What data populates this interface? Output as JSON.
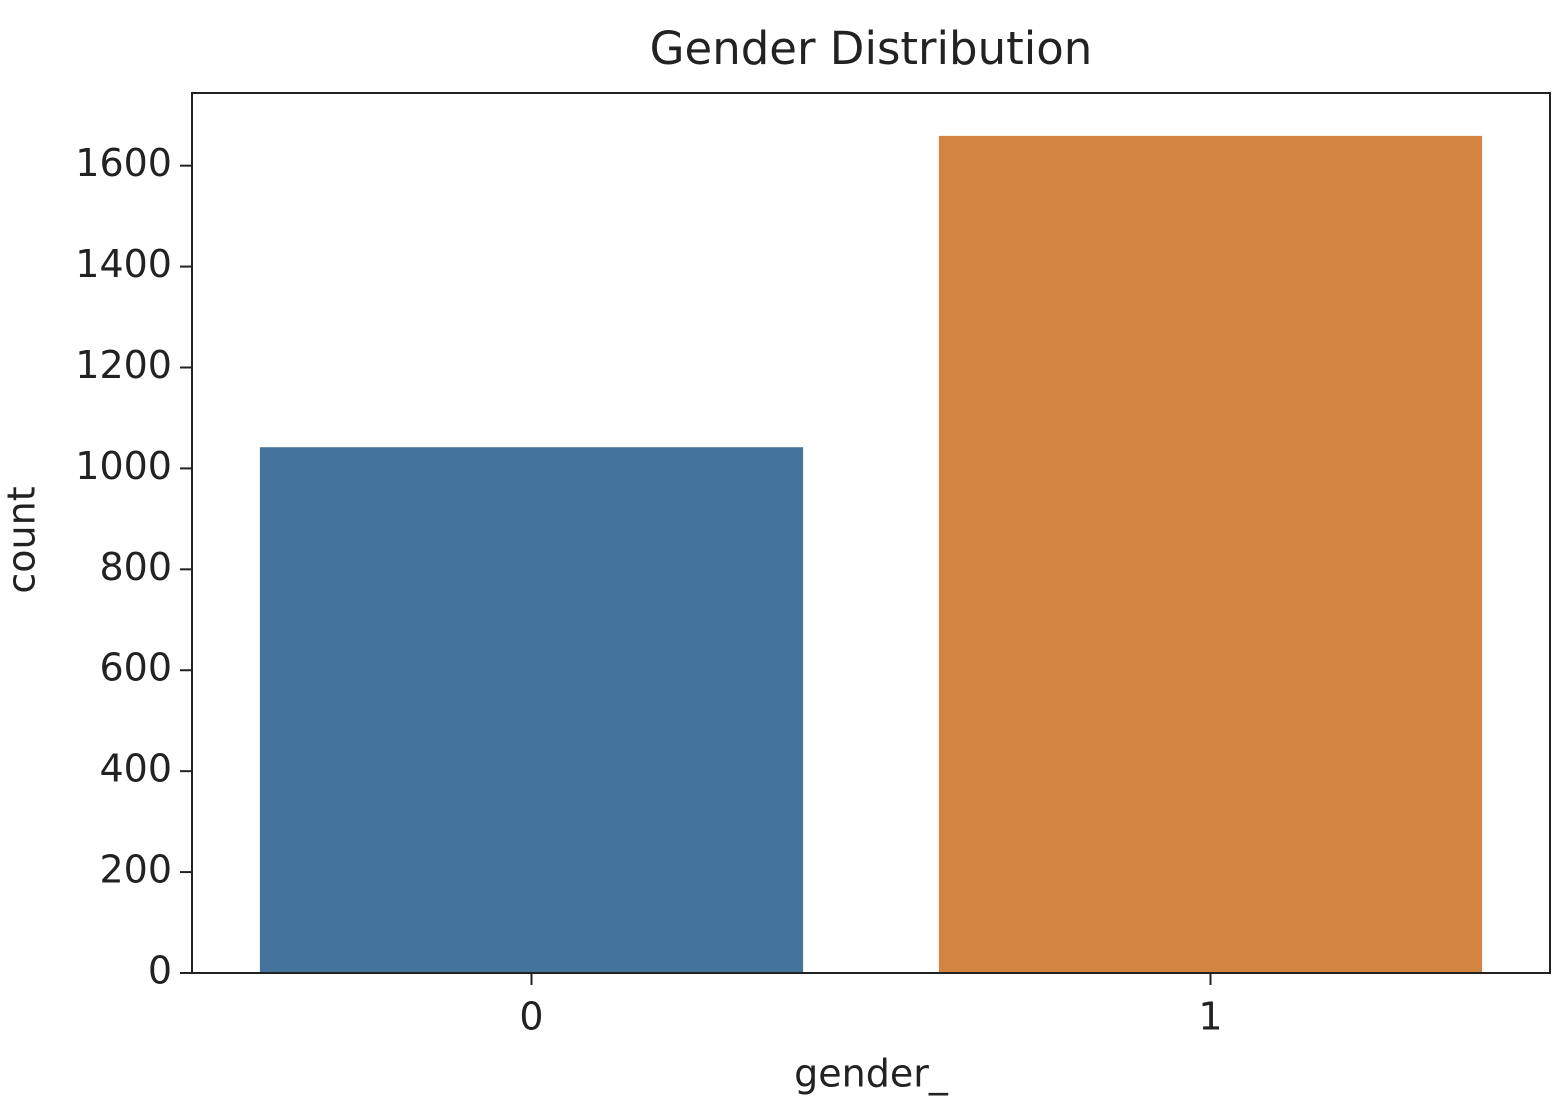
{
  "chart_data": {
    "type": "bar",
    "title": "Gender Distribution",
    "x_label": "gender_",
    "y_label": "count",
    "categories": [
      "0",
      "1"
    ],
    "values": [
      1042,
      1659
    ],
    "colors": [
      "#44739c",
      "#d3843f"
    ],
    "ylim": [
      0,
      1744
    ],
    "yticks": [
      0,
      200,
      400,
      600,
      800,
      1000,
      1200,
      1400,
      1600
    ]
  }
}
